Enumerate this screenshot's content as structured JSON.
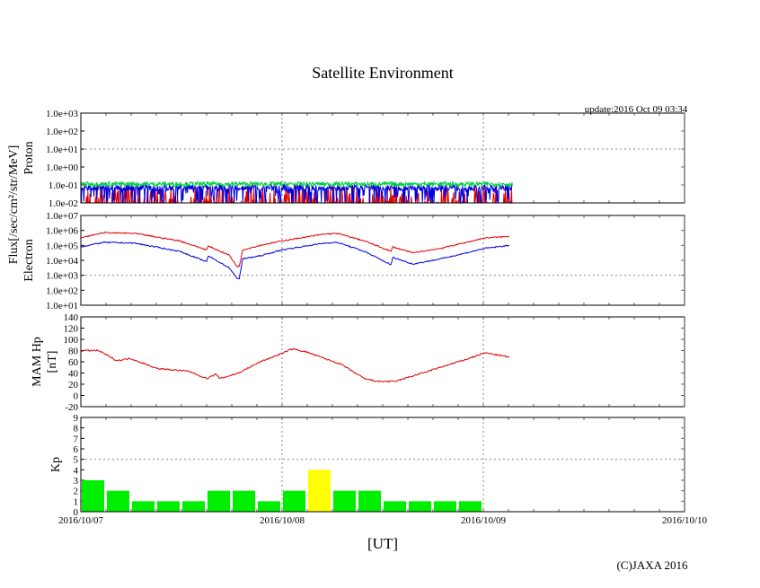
{
  "chart_data": {
    "title": "Satellite Environment",
    "update": "update:2016 Oct 09 03:34",
    "copyright": "(C)JAXA 2016",
    "xlabel": "[UT]",
    "x_unit": "hours since 2016/10/07 00:00",
    "xlim": [
      0,
      72
    ],
    "x_ticks": [
      "2016/10/07",
      "2016/10/08",
      "2016/10/09",
      "2016/10/10"
    ],
    "flux_label": "Flux[/sec/cm²/str/MeV]",
    "colors": {
      "red": "#e00000",
      "blue": "#0000e0",
      "green": "#00d040",
      "kp_green": "#00ee00",
      "kp_yellow": "#ffff00"
    },
    "panels": [
      {
        "type": "line",
        "ylabel": "Proton",
        "scale": "log",
        "ylim_exp": [
          -2,
          3
        ],
        "tick_labels": [
          "1.0e-02",
          "1.0e-01",
          "1.0e+00",
          "1.0e+01",
          "1.0e+02",
          "1.0e+03"
        ],
        "grid_exp": 1,
        "series": [
          {
            "name": "green",
            "color": "green",
            "level_exp": -0.95,
            "noise": "low"
          },
          {
            "name": "blue",
            "color": "blue",
            "level_exp": -1.15,
            "noise": "high"
          },
          {
            "name": "red",
            "color": "red",
            "level_exp": -2.0,
            "noise": "spikes"
          }
        ],
        "x_end": 51.5
      },
      {
        "type": "line",
        "ylabel": "Electron",
        "scale": "log",
        "ylim_exp": [
          1,
          7
        ],
        "tick_labels": [
          "1.0e+01",
          "1.0e+02",
          "1.0e+03",
          "1.0e+04",
          "1.0e+05",
          "1.0e+06",
          "1.0e+07"
        ],
        "grid_exp": 3,
        "series": [
          {
            "name": "red",
            "color": "red",
            "x": [
              0,
              2.7,
              6.4,
              11.8,
              15,
              15.2,
              17.7,
              18.6,
              18.9,
              19.3,
              21.4,
              24,
              29,
              30.6,
              33.8,
              37,
              37.2,
              39.6,
              42.9,
              46,
              48.2,
              51.2
            ],
            "y_exp": [
              5.5,
              5.85,
              5.8,
              5.3,
              4.7,
              4.95,
              4.35,
              3.6,
              3.6,
              4.7,
              5.0,
              5.3,
              5.75,
              5.8,
              5.3,
              4.6,
              4.9,
              4.5,
              4.8,
              5.2,
              5.5,
              5.6
            ]
          },
          {
            "name": "blue",
            "color": "blue",
            "x": [
              0,
              2.7,
              6.4,
              11.8,
              15,
              15.2,
              17.7,
              18.6,
              18.9,
              19.3,
              21.4,
              24,
              29,
              30.6,
              33.8,
              37,
              37.2,
              39.6,
              42.9,
              46,
              48.2,
              51.2
            ],
            "y_exp": [
              4.9,
              5.2,
              5.15,
              4.6,
              3.9,
              4.3,
              3.5,
              2.8,
              2.8,
              4.1,
              4.3,
              4.7,
              5.15,
              5.2,
              4.6,
              3.7,
              4.2,
              3.75,
              4.1,
              4.5,
              4.8,
              5.0
            ]
          }
        ]
      },
      {
        "type": "line",
        "ylabel": "MAM Hp",
        "ylabel2": "[nT]",
        "scale": "linear",
        "ylim": [
          -20,
          140
        ],
        "tick_labels": [
          "-20",
          "0",
          "20",
          "40",
          "60",
          "80",
          "100",
          "120",
          "140"
        ],
        "series": [
          {
            "name": "Hp",
            "color": "red",
            "x": [
              0,
              2.1,
              4.3,
              5.9,
              9.1,
              12.9,
              15,
              16.1,
              16.6,
              18.8,
              21.4,
              24,
              25.2,
              26.8,
              31.1,
              33.8,
              35.4,
              37.5,
              41.8,
              46.1,
              48.2,
              51.2
            ],
            "y": [
              80,
              80,
              62,
              66,
              48,
              43,
              30,
              38,
              30,
              40,
              60,
              75,
              83,
              78,
              55,
              30,
              25,
              25,
              45,
              65,
              76,
              68
            ]
          }
        ]
      },
      {
        "type": "bar",
        "ylabel": "Kp",
        "scale": "linear",
        "ylim": [
          0,
          9
        ],
        "tick_labels": [
          "0",
          "1",
          "2",
          "3",
          "4",
          "5",
          "6",
          "7",
          "8",
          "9"
        ],
        "grid_value": 5,
        "bar_hours": 3,
        "values": [
          3,
          2,
          1,
          1,
          1,
          2,
          2,
          1,
          2,
          4,
          2,
          2,
          1,
          1,
          1,
          1
        ]
      }
    ]
  }
}
